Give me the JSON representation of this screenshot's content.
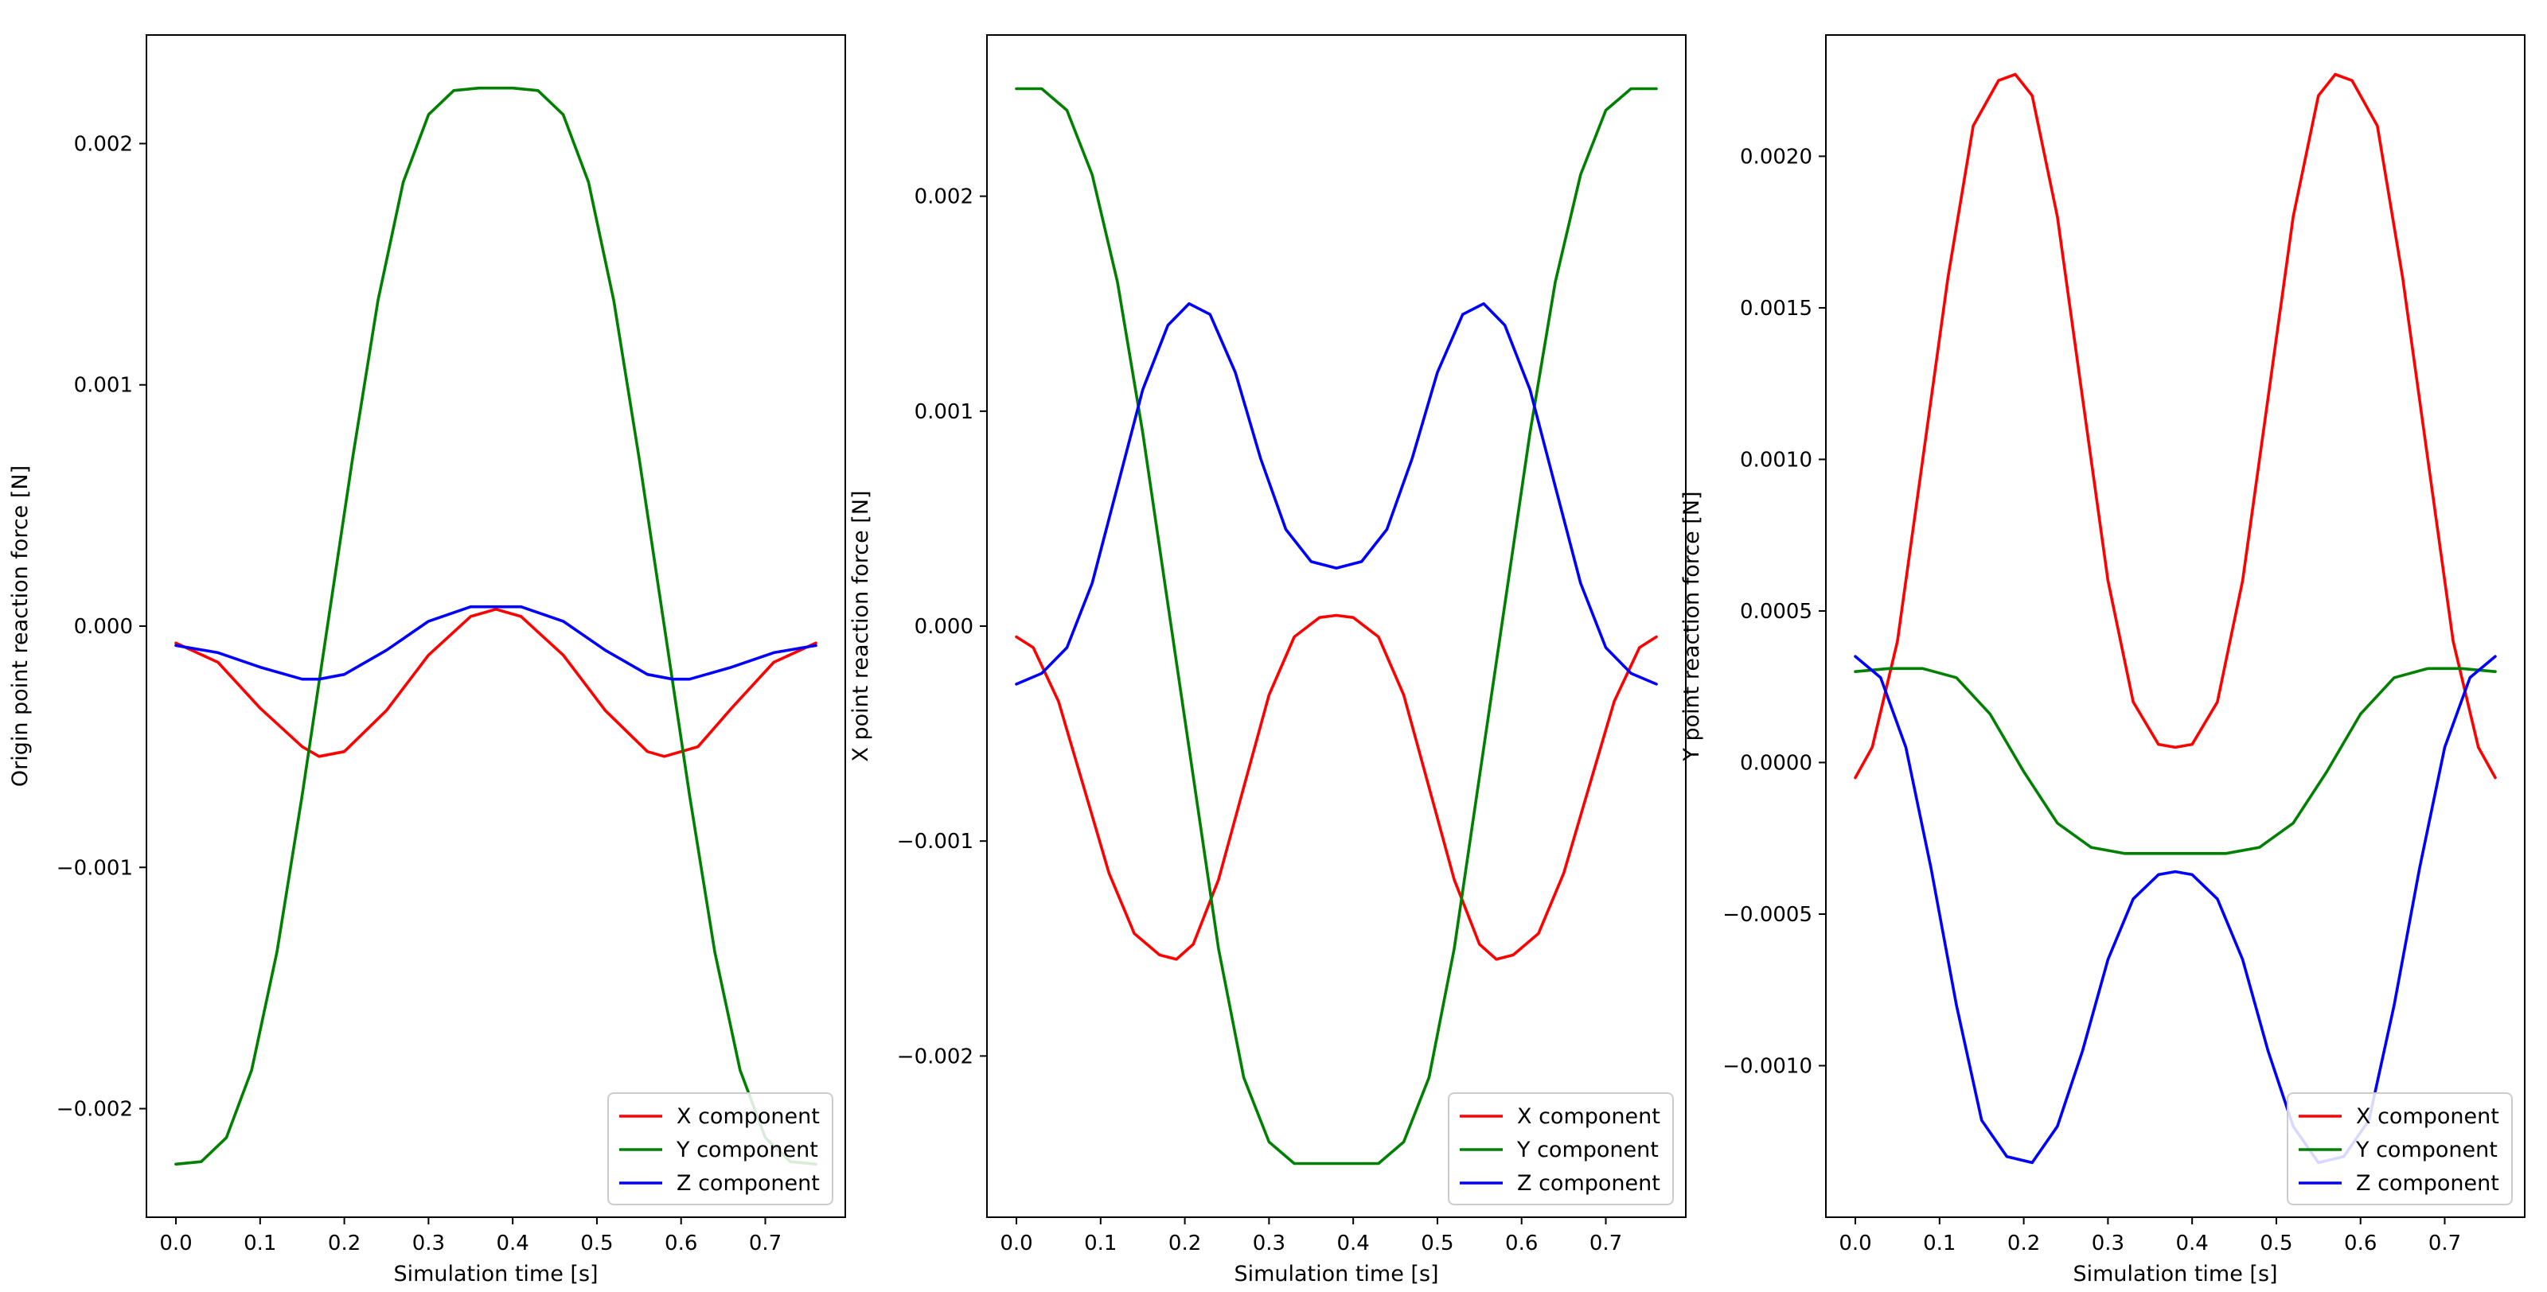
{
  "chart_data": [
    {
      "type": "line",
      "xlabel": "Simulation time [s]",
      "ylabel": "Origin point reaction force [N]",
      "xlim": [
        -0.035,
        0.795
      ],
      "ylim": [
        -0.00245,
        0.00245
      ],
      "xticks": [
        0.0,
        0.1,
        0.2,
        0.3,
        0.4,
        0.5,
        0.6,
        0.7
      ],
      "xtick_labels": [
        "0.0",
        "0.1",
        "0.2",
        "0.3",
        "0.4",
        "0.5",
        "0.6",
        "0.7"
      ],
      "yticks": [
        -0.002,
        -0.001,
        0.0,
        0.001,
        0.002
      ],
      "ytick_labels": [
        "−0.002",
        "−0.001",
        "0.000",
        "0.001",
        "0.002"
      ],
      "legend_position": "lower-right",
      "series": [
        {
          "name": "X component",
          "color": "#ff0000",
          "x": [
            0.0,
            0.05,
            0.1,
            0.15,
            0.17,
            0.2,
            0.25,
            0.3,
            0.35,
            0.38,
            0.41,
            0.46,
            0.51,
            0.56,
            0.58,
            0.62,
            0.66,
            0.71,
            0.76
          ],
          "y": [
            -7e-05,
            -0.00015,
            -0.00034,
            -0.0005,
            -0.00054,
            -0.00052,
            -0.00035,
            -0.00012,
            4e-05,
            7e-05,
            4e-05,
            -0.00012,
            -0.00035,
            -0.00052,
            -0.00054,
            -0.0005,
            -0.00034,
            -0.00015,
            -7e-05
          ]
        },
        {
          "name": "Y component",
          "color": "#008000",
          "x": [
            0.0,
            0.03,
            0.06,
            0.09,
            0.12,
            0.15,
            0.18,
            0.21,
            0.24,
            0.27,
            0.3,
            0.33,
            0.36,
            0.4,
            0.43,
            0.46,
            0.49,
            0.52,
            0.55,
            0.58,
            0.61,
            0.64,
            0.67,
            0.7,
            0.73,
            0.76
          ],
          "y": [
            -0.00223,
            -0.00222,
            -0.00212,
            -0.00184,
            -0.00135,
            -0.0007,
            0.0,
            0.0007,
            0.00135,
            0.00184,
            0.00212,
            0.00222,
            0.00223,
            0.00223,
            0.00222,
            0.00212,
            0.00184,
            0.00135,
            0.0007,
            0.0,
            -0.0007,
            -0.00135,
            -0.00184,
            -0.00212,
            -0.00222,
            -0.00223
          ]
        },
        {
          "name": "Z component",
          "color": "#0000ff",
          "x": [
            0.0,
            0.05,
            0.1,
            0.15,
            0.17,
            0.2,
            0.25,
            0.3,
            0.35,
            0.38,
            0.41,
            0.46,
            0.51,
            0.56,
            0.59,
            0.61,
            0.66,
            0.71,
            0.76
          ],
          "y": [
            -8e-05,
            -0.00011,
            -0.00017,
            -0.00022,
            -0.00022,
            -0.0002,
            -0.0001,
            2e-05,
            8e-05,
            8e-05,
            8e-05,
            2e-05,
            -0.0001,
            -0.0002,
            -0.00022,
            -0.00022,
            -0.00017,
            -0.00011,
            -8e-05
          ]
        }
      ]
    },
    {
      "type": "line",
      "xlabel": "Simulation time [s]",
      "ylabel": "X point reaction force [N]",
      "xlim": [
        -0.035,
        0.795
      ],
      "ylim": [
        -0.00275,
        0.00275
      ],
      "xticks": [
        0.0,
        0.1,
        0.2,
        0.3,
        0.4,
        0.5,
        0.6,
        0.7
      ],
      "xtick_labels": [
        "0.0",
        "0.1",
        "0.2",
        "0.3",
        "0.4",
        "0.5",
        "0.6",
        "0.7"
      ],
      "yticks": [
        -0.002,
        -0.001,
        0.0,
        0.001,
        0.002
      ],
      "ytick_labels": [
        "−0.002",
        "−0.001",
        "0.000",
        "0.001",
        "0.002"
      ],
      "legend_position": "lower-right",
      "series": [
        {
          "name": "X component",
          "color": "#ff0000",
          "x": [
            0.0,
            0.02,
            0.05,
            0.08,
            0.11,
            0.14,
            0.17,
            0.19,
            0.21,
            0.24,
            0.27,
            0.3,
            0.33,
            0.36,
            0.38,
            0.4,
            0.43,
            0.46,
            0.49,
            0.52,
            0.55,
            0.57,
            0.59,
            0.62,
            0.65,
            0.68,
            0.71,
            0.74,
            0.76
          ],
          "y": [
            -5e-05,
            -0.0001,
            -0.00035,
            -0.00075,
            -0.00115,
            -0.00143,
            -0.00153,
            -0.00155,
            -0.00148,
            -0.00118,
            -0.00075,
            -0.00032,
            -5e-05,
            4e-05,
            5e-05,
            4e-05,
            -5e-05,
            -0.00032,
            -0.00075,
            -0.00118,
            -0.00148,
            -0.00155,
            -0.00153,
            -0.00143,
            -0.00115,
            -0.00075,
            -0.00035,
            -0.0001,
            -5e-05
          ]
        },
        {
          "name": "Y component",
          "color": "#008000",
          "x": [
            0.0,
            0.03,
            0.06,
            0.09,
            0.12,
            0.15,
            0.18,
            0.21,
            0.24,
            0.27,
            0.3,
            0.33,
            0.36,
            0.38,
            0.4,
            0.43,
            0.46,
            0.49,
            0.52,
            0.55,
            0.58,
            0.61,
            0.64,
            0.67,
            0.7,
            0.73,
            0.76
          ],
          "y": [
            0.0025,
            0.0025,
            0.0024,
            0.0021,
            0.0016,
            0.0009,
            0.0001,
            -0.0007,
            -0.0015,
            -0.0021,
            -0.0024,
            -0.0025,
            -0.0025,
            -0.0025,
            -0.0025,
            -0.0025,
            -0.0024,
            -0.0021,
            -0.0015,
            -0.0007,
            0.0001,
            0.0009,
            0.0016,
            0.0021,
            0.0024,
            0.0025,
            0.0025
          ]
        },
        {
          "name": "Z component",
          "color": "#0000ff",
          "x": [
            0.0,
            0.03,
            0.06,
            0.09,
            0.12,
            0.15,
            0.18,
            0.205,
            0.23,
            0.26,
            0.29,
            0.32,
            0.35,
            0.38,
            0.41,
            0.44,
            0.47,
            0.5,
            0.53,
            0.555,
            0.58,
            0.61,
            0.64,
            0.67,
            0.7,
            0.73,
            0.76
          ],
          "y": [
            -0.00027,
            -0.00022,
            -0.0001,
            0.0002,
            0.00065,
            0.0011,
            0.0014,
            0.0015,
            0.00145,
            0.00118,
            0.00078,
            0.00045,
            0.0003,
            0.00027,
            0.0003,
            0.00045,
            0.00078,
            0.00118,
            0.00145,
            0.0015,
            0.0014,
            0.0011,
            0.00065,
            0.0002,
            -0.0001,
            -0.00022,
            -0.00027
          ]
        }
      ]
    },
    {
      "type": "line",
      "xlabel": "Simulation time [s]",
      "ylabel": "Y point reaction force [N]",
      "xlim": [
        -0.035,
        0.795
      ],
      "ylim": [
        -0.0015,
        0.0024
      ],
      "xticks": [
        0.0,
        0.1,
        0.2,
        0.3,
        0.4,
        0.5,
        0.6,
        0.7
      ],
      "xtick_labels": [
        "0.0",
        "0.1",
        "0.2",
        "0.3",
        "0.4",
        "0.5",
        "0.6",
        "0.7"
      ],
      "yticks": [
        -0.001,
        -0.0005,
        0.0,
        0.0005,
        0.001,
        0.0015,
        0.002
      ],
      "ytick_labels": [
        "−0.0010",
        "−0.0005",
        "0.0000",
        "0.0005",
        "0.0010",
        "0.0015",
        "0.0020"
      ],
      "legend_position": "lower-right",
      "series": [
        {
          "name": "X component",
          "color": "#ff0000",
          "x": [
            0.0,
            0.02,
            0.05,
            0.08,
            0.11,
            0.14,
            0.17,
            0.19,
            0.21,
            0.24,
            0.27,
            0.3,
            0.33,
            0.36,
            0.38,
            0.4,
            0.43,
            0.46,
            0.49,
            0.52,
            0.55,
            0.57,
            0.59,
            0.62,
            0.65,
            0.68,
            0.71,
            0.74,
            0.76
          ],
          "y": [
            -5e-05,
            5e-05,
            0.0004,
            0.001,
            0.0016,
            0.0021,
            0.00225,
            0.00227,
            0.0022,
            0.0018,
            0.0012,
            0.0006,
            0.0002,
            6e-05,
            5e-05,
            6e-05,
            0.0002,
            0.0006,
            0.0012,
            0.0018,
            0.0022,
            0.00227,
            0.00225,
            0.0021,
            0.0016,
            0.001,
            0.0004,
            5e-05,
            -5e-05
          ]
        },
        {
          "name": "Y component",
          "color": "#008000",
          "x": [
            0.0,
            0.04,
            0.08,
            0.12,
            0.16,
            0.2,
            0.24,
            0.28,
            0.32,
            0.36,
            0.38,
            0.4,
            0.44,
            0.48,
            0.52,
            0.56,
            0.6,
            0.64,
            0.68,
            0.72,
            0.76
          ],
          "y": [
            0.0003,
            0.00031,
            0.00031,
            0.00028,
            0.00016,
            -3e-05,
            -0.0002,
            -0.00028,
            -0.0003,
            -0.0003,
            -0.0003,
            -0.0003,
            -0.0003,
            -0.00028,
            -0.0002,
            -3e-05,
            0.00016,
            0.00028,
            0.00031,
            0.00031,
            0.0003
          ]
        },
        {
          "name": "Z component",
          "color": "#0000ff",
          "x": [
            0.0,
            0.03,
            0.06,
            0.09,
            0.12,
            0.15,
            0.18,
            0.21,
            0.24,
            0.27,
            0.3,
            0.33,
            0.36,
            0.38,
            0.4,
            0.43,
            0.46,
            0.49,
            0.52,
            0.55,
            0.58,
            0.61,
            0.64,
            0.67,
            0.7,
            0.73,
            0.76
          ],
          "y": [
            0.00035,
            0.00028,
            5e-05,
            -0.00035,
            -0.0008,
            -0.00118,
            -0.0013,
            -0.00132,
            -0.0012,
            -0.00095,
            -0.00065,
            -0.00045,
            -0.00037,
            -0.00036,
            -0.00037,
            -0.00045,
            -0.00065,
            -0.00095,
            -0.0012,
            -0.00132,
            -0.0013,
            -0.00118,
            -0.0008,
            -0.00035,
            5e-05,
            0.00028,
            0.00035
          ]
        }
      ]
    }
  ]
}
